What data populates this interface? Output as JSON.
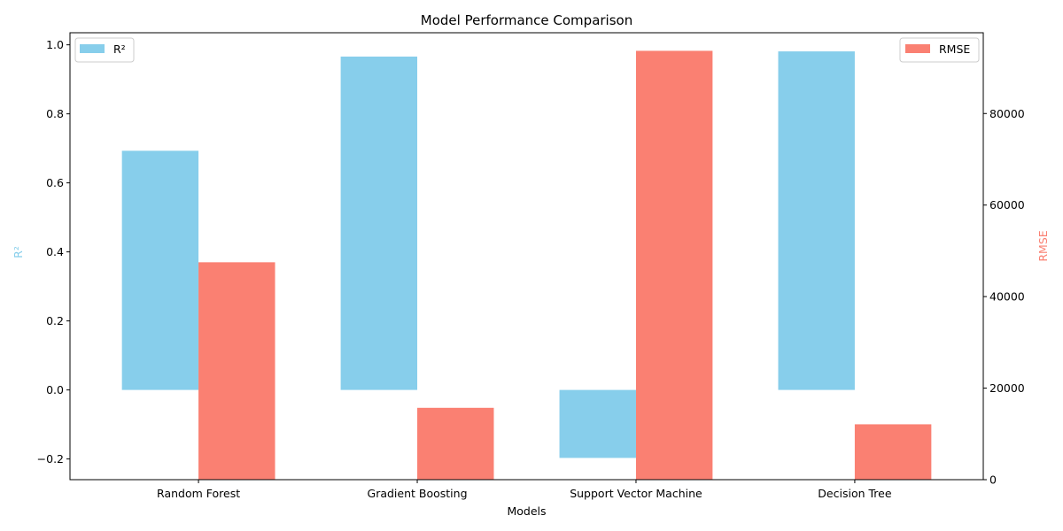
{
  "chart_data": {
    "type": "bar",
    "title": "Model Performance Comparison",
    "xlabel": "Models",
    "categories": [
      "Random Forest",
      "Gradient Boosting",
      "Support Vector Machine",
      "Decision Tree"
    ],
    "series": [
      {
        "name": "R²",
        "axis": "left",
        "color": "#87ceeb",
        "values": [
          0.693,
          0.966,
          -0.197,
          0.981
        ]
      },
      {
        "name": "RMSE",
        "axis": "right",
        "color": "#fa8072",
        "values": [
          47500,
          15700,
          93700,
          12100
        ]
      }
    ],
    "y_left": {
      "label": "R²",
      "label_color": "#87ceeb",
      "lim": [
        -0.26,
        1.035
      ],
      "ticks": [
        -0.2,
        0.0,
        0.2,
        0.4,
        0.6,
        0.8,
        1.0
      ],
      "tick_labels": [
        "−0.2",
        "0.0",
        "0.2",
        "0.4",
        "0.6",
        "0.8",
        "1.0"
      ]
    },
    "y_right": {
      "label": "RMSE",
      "label_color": "#fa8072",
      "lim": [
        0,
        97650
      ],
      "ticks": [
        0,
        20000,
        40000,
        60000,
        80000
      ],
      "tick_labels": [
        "0",
        "20000",
        "40000",
        "60000",
        "80000"
      ]
    },
    "legend_left": "upper-left",
    "legend_right": "upper-right",
    "grid": false
  }
}
